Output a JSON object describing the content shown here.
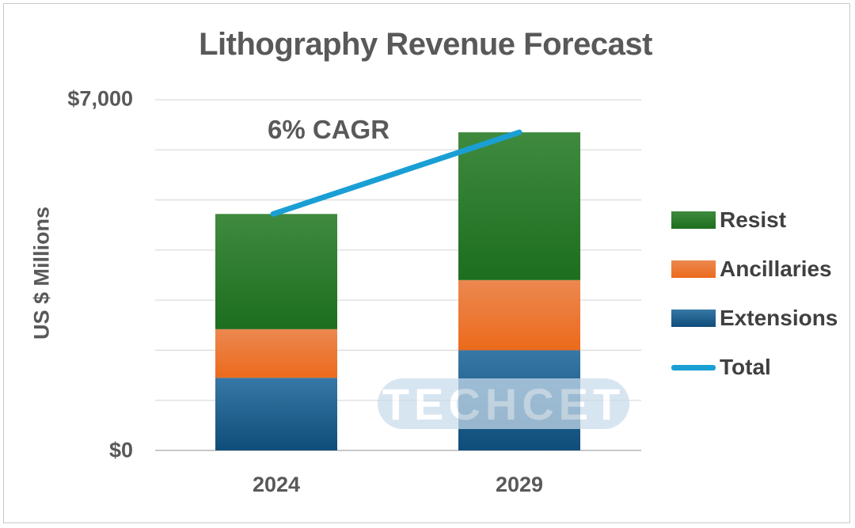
{
  "chart_data": {
    "type": "bar",
    "stacked": true,
    "title": "Lithography Revenue Forecast",
    "ylabel": "US $ Millions",
    "xlabel": "",
    "ylim": [
      0,
      7000
    ],
    "y_ticks_labeled": [
      "$0",
      "$7,000"
    ],
    "gridline_step": 1000,
    "grid": true,
    "categories": [
      "2024",
      "2029"
    ],
    "series": [
      {
        "name": "Extensions",
        "type": "bar",
        "color": "#1f5f8b",
        "values": [
          1450,
          2000
        ]
      },
      {
        "name": "Ancillaries",
        "type": "bar",
        "color": "#ef7025",
        "values": [
          970,
          1400
        ]
      },
      {
        "name": "Resist",
        "type": "bar",
        "color": "#2f7a2f",
        "values": [
          2300,
          2950
        ]
      },
      {
        "name": "Total",
        "type": "line",
        "color": "#1a9fd4",
        "values": [
          4720,
          6350
        ]
      }
    ],
    "annotation": "6% CAGR",
    "legend_position": "right",
    "legend_order": [
      "Resist",
      "Ancillaries",
      "Extensions",
      "Total"
    ]
  },
  "watermark_text": "TECHCET"
}
